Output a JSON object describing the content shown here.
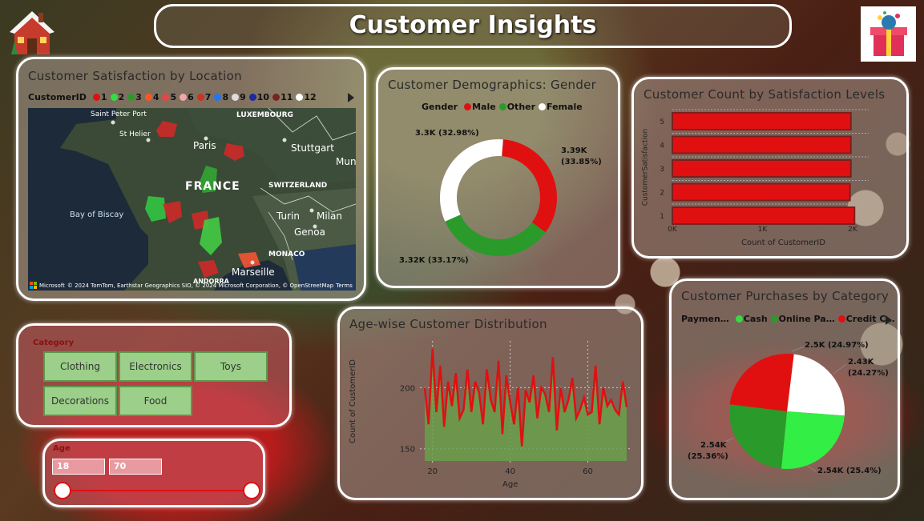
{
  "header": {
    "title": "Customer Insights"
  },
  "map_panel": {
    "title": "Customer Satisfaction by Location",
    "legend_label": "CustomerID",
    "legend_items": [
      {
        "label": "1",
        "color": "#e01010"
      },
      {
        "label": "2",
        "color": "#33dd44"
      },
      {
        "label": "3",
        "color": "#2a9a2a"
      },
      {
        "label": "4",
        "color": "#ff5522"
      },
      {
        "label": "5",
        "color": "#e04848"
      },
      {
        "label": "6",
        "color": "#f0a8a8"
      },
      {
        "label": "7",
        "color": "#cc3322"
      },
      {
        "label": "8",
        "color": "#2277ee"
      },
      {
        "label": "9",
        "color": "#dddddd"
      },
      {
        "label": "10",
        "color": "#1a2aa0"
      },
      {
        "label": "11",
        "color": "#7a2222"
      },
      {
        "label": "12",
        "color": "#ffffff"
      }
    ],
    "places": {
      "saint_peter_port": "Saint Peter Port",
      "st_helier": "St Helier",
      "luxembourg": "LUXEMBOURG",
      "paris": "Paris",
      "stuttgart": "Stuttgart",
      "mun": "Mun",
      "france": "FRANCE",
      "switzerland": "SWITZERLAND",
      "bay_of_biscay": "Bay of Biscay",
      "turin": "Turin",
      "milan": "Milan",
      "genoa": "Genoa",
      "monaco": "MONACO",
      "marseille": "Marseille",
      "andorra": "ANDORRA"
    },
    "attribution": "© 2024 TomTom, Earthstar Geographics SIO, © 2024 Microsoft Corporation, © OpenStreetMap",
    "terms": "Terms",
    "ms_logo": "Microsoft"
  },
  "gender_panel": {
    "title": "Customer Demographics: Gender",
    "legend_label": "Gender",
    "legend_items": [
      {
        "label": "Male",
        "color": "#e01010"
      },
      {
        "label": "Other",
        "color": "#2a9a2a"
      },
      {
        "label": "Female",
        "color": "#ffffff"
      }
    ],
    "labels": {
      "male_value": "3.39K",
      "male_pct": "(33.85%)",
      "female": "3.3K (32.98%)",
      "other": "3.32K (33.17%)"
    }
  },
  "satisfaction_panel": {
    "title": "Customer Count by Satisfaction Levels",
    "ylabel": "CustomerSatisfaction",
    "xlabel": "Count of CustomerID",
    "xticks": [
      "0K",
      "1K",
      "2K"
    ]
  },
  "category_filter": {
    "label": "Category",
    "buttons": [
      "Clothing",
      "Electronics",
      "Toys",
      "Decorations",
      "Food"
    ]
  },
  "age_filter": {
    "label": "Age",
    "min_value": "18",
    "max_value": "70"
  },
  "age_panel": {
    "title": "Age-wise Customer Distribution",
    "ylabel": "Count of CustomerID",
    "xlabel": "Age",
    "yticks": [
      "150",
      "200"
    ],
    "xticks": [
      "20",
      "40",
      "60"
    ]
  },
  "purchases_panel": {
    "title": "Customer Purchases by Category",
    "legend_label": "Paymen…",
    "legend_items": [
      {
        "label": "Cash",
        "color": "#33dd44"
      },
      {
        "label": "Online Pa…",
        "color": "#2a9a2a"
      },
      {
        "label": "Credit C…",
        "color": "#e01010"
      }
    ],
    "labels": {
      "top": "2.5K (24.97%)",
      "right_value": "2.43K",
      "right_pct": "(24.27%)",
      "left_value": "2.54K",
      "left_pct": "(25.36%)",
      "bottom": "2.54K (25.4%)"
    }
  },
  "chart_data": [
    {
      "type": "pie",
      "title": "Customer Demographics: Gender",
      "categories": [
        "Male",
        "Other",
        "Female"
      ],
      "values": [
        3390,
        3320,
        3300
      ],
      "percentages": [
        33.85,
        33.17,
        32.98
      ],
      "colors": [
        "#e01010",
        "#2a9a2a",
        "#ffffff"
      ],
      "donut": true
    },
    {
      "type": "bar",
      "title": "Customer Count by Satisfaction Levels",
      "orientation": "horizontal",
      "categories": [
        "5",
        "4",
        "3",
        "2",
        "1"
      ],
      "values": [
        1980,
        1980,
        1980,
        1970,
        2020
      ],
      "xlabel": "Count of CustomerID",
      "ylabel": "CustomerSatisfaction",
      "xlim": [
        0,
        2000
      ],
      "color": "#e01010"
    },
    {
      "type": "area",
      "title": "Age-wise Customer Distribution",
      "xlabel": "Age",
      "ylabel": "Count of CustomerID",
      "x": [
        18,
        19,
        20,
        21,
        22,
        23,
        24,
        25,
        26,
        27,
        28,
        29,
        30,
        31,
        32,
        33,
        34,
        35,
        36,
        37,
        38,
        39,
        40,
        41,
        42,
        43,
        44,
        45,
        46,
        47,
        48,
        49,
        50,
        51,
        52,
        53,
        54,
        55,
        56,
        57,
        58,
        59,
        60,
        61,
        62,
        63,
        64,
        65,
        66,
        67,
        68,
        69,
        70
      ],
      "values": [
        200,
        170,
        232,
        180,
        218,
        168,
        205,
        185,
        212,
        175,
        182,
        215,
        180,
        205,
        196,
        170,
        215,
        190,
        180,
        222,
        162,
        210,
        188,
        170,
        200,
        152,
        198,
        188,
        210,
        175,
        200,
        195,
        180,
        225,
        165,
        200,
        180,
        190,
        208,
        175,
        182,
        192,
        178,
        180,
        218,
        170,
        200,
        185,
        190,
        182,
        178,
        205,
        184
      ],
      "ylim": [
        140,
        235
      ],
      "xlim": [
        18,
        70
      ],
      "color": "#e01010",
      "fill": "#6aa04a"
    },
    {
      "type": "pie",
      "title": "Customer Purchases by Category",
      "categories": [
        "Payment A",
        "Cash",
        "Online Pa…",
        "Credit C…"
      ],
      "values": [
        2430,
        2540,
        2540,
        2500
      ],
      "percentages": [
        24.27,
        25.4,
        25.36,
        24.97
      ],
      "colors": [
        "#ffffff",
        "#33ee44",
        "#2a9a2a",
        "#e01010"
      ]
    }
  ]
}
